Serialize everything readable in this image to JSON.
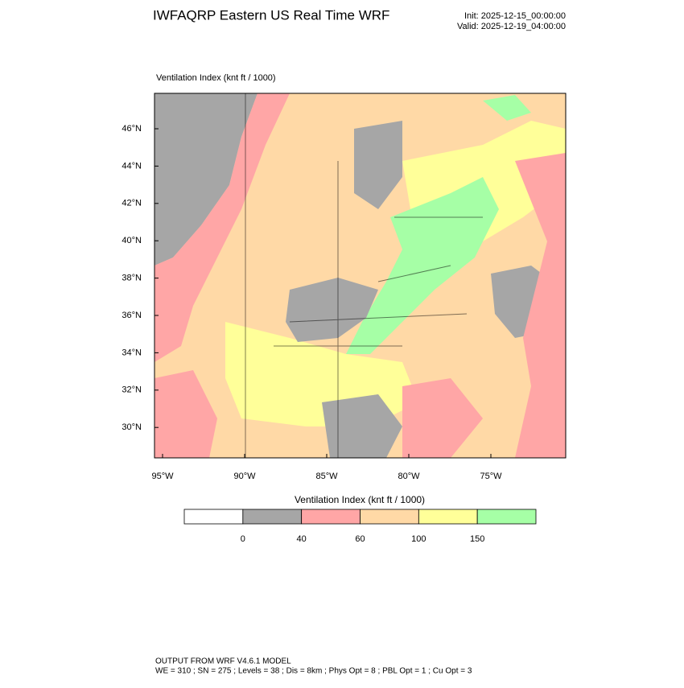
{
  "header": {
    "title": "IWFAQRP Eastern US Real Time WRF",
    "init": "Init: 2025-12-15_00:00:00",
    "valid": "Valid: 2025-12-19_04:00:00"
  },
  "map": {
    "title": "Ventilation Index   (knt ft / 1000)",
    "lat_labels": [
      "46°N",
      "44°N",
      "42°N",
      "40°N",
      "38°N",
      "36°N",
      "34°N",
      "32°N",
      "30°N"
    ],
    "lon_labels": [
      "95°W",
      "90°W",
      "85°W",
      "80°W",
      "75°W"
    ]
  },
  "colorbar": {
    "title": "Ventilation Index  (knt ft / 1000)",
    "colors": [
      "#ffffff",
      "#a6a6a6",
      "#ffa6a6",
      "#ffd9a6",
      "#ffff99",
      "#a6ffa6"
    ],
    "ticks": [
      0,
      40,
      60,
      100,
      150
    ]
  },
  "footer": {
    "line1": "OUTPUT FROM WRF V4.6.1 MODEL",
    "line2": "WE = 310 ; SN = 275 ; Levels = 38 ; Dis = 8km ; Phys Opt = 8 ; PBL Opt = 1 ; Cu Opt = 3"
  }
}
